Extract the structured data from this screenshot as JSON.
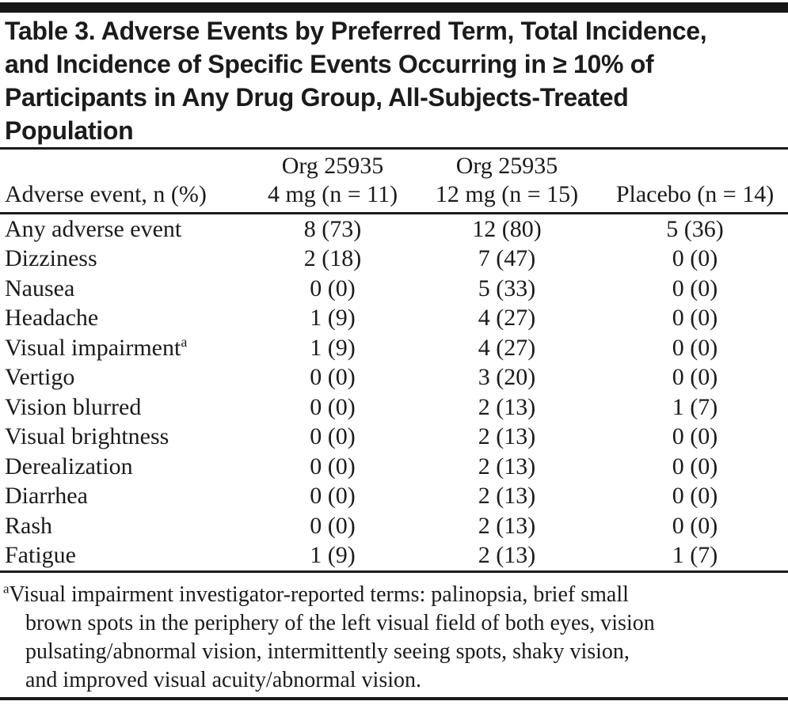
{
  "title": {
    "lines": [
      "Table 3. Adverse Events by Preferred Term, Total Incidence,",
      "and Incidence of Specific Events Occurring in ≥ 10% of",
      "Participants in Any Drug Group, All-Subjects-Treated",
      "Population"
    ]
  },
  "table": {
    "col1_header": "Adverse event, n (%)",
    "col_groups": [
      {
        "line1": "Org 25935",
        "line2": "4 mg (n = 11)"
      },
      {
        "line1": "Org 25935",
        "line2": "12 mg (n = 15)"
      },
      {
        "line1": "",
        "line2": "Placebo (n = 14)"
      }
    ],
    "rows": [
      {
        "label": "Any adverse event",
        "sup": "",
        "c1": "8 (73)",
        "c2": "12 (80)",
        "c3": "5 (36)"
      },
      {
        "label": "Dizziness",
        "sup": "",
        "c1": "2 (18)",
        "c2": "7 (47)",
        "c3": "0 (0)"
      },
      {
        "label": "Nausea",
        "sup": "",
        "c1": "0 (0)",
        "c2": "5 (33)",
        "c3": "0 (0)"
      },
      {
        "label": "Headache",
        "sup": "",
        "c1": "1 (9)",
        "c2": "4 (27)",
        "c3": "0 (0)"
      },
      {
        "label": "Visual impairment",
        "sup": "a",
        "c1": "1 (9)",
        "c2": "4 (27)",
        "c3": "0 (0)"
      },
      {
        "label": "Vertigo",
        "sup": "",
        "c1": "0 (0)",
        "c2": "3 (20)",
        "c3": "0 (0)"
      },
      {
        "label": "Vision blurred",
        "sup": "",
        "c1": "0 (0)",
        "c2": "2 (13)",
        "c3": "1 (7)"
      },
      {
        "label": "Visual brightness",
        "sup": "",
        "c1": "0 (0)",
        "c2": "2 (13)",
        "c3": "0 (0)"
      },
      {
        "label": "Derealization",
        "sup": "",
        "c1": "0 (0)",
        "c2": "2 (13)",
        "c3": "0 (0)"
      },
      {
        "label": "Diarrhea",
        "sup": "",
        "c1": "0 (0)",
        "c2": "2 (13)",
        "c3": "0 (0)"
      },
      {
        "label": "Rash",
        "sup": "",
        "c1": "0 (0)",
        "c2": "2 (13)",
        "c3": "0 (0)"
      },
      {
        "label": "Fatigue",
        "sup": "",
        "c1": "1 (9)",
        "c2": "2 (13)",
        "c3": "1 (7)"
      }
    ]
  },
  "footnote": {
    "marker": "a",
    "lines": [
      "Visual impairment investigator-reported terms: palinopsia, brief small",
      "brown spots in the periphery of the left visual field of both eyes, vision",
      "pulsating/abnormal vision, intermittently seeing spots, shaky vision,",
      "and improved visual acuity/abnormal vision."
    ]
  },
  "colors": {
    "text": "#1b1b1b",
    "rule": "#1b1b1b",
    "top_bar": "#161616",
    "background": "#ffffff"
  },
  "chart_data": {
    "type": "table",
    "title": "Table 3. Adverse Events by Preferred Term, Total Incidence, and Incidence of Specific Events Occurring in ≥ 10% of Participants in Any Drug Group, All-Subjects-Treated Population",
    "columns": [
      "Adverse event, n (%)",
      "Org 25935 4 mg (n = 11)",
      "Org 25935 12 mg (n = 15)",
      "Placebo (n = 14)"
    ],
    "rows": [
      [
        "Any adverse event",
        "8 (73)",
        "12 (80)",
        "5 (36)"
      ],
      [
        "Dizziness",
        "2 (18)",
        "7 (47)",
        "0 (0)"
      ],
      [
        "Nausea",
        "0 (0)",
        "5 (33)",
        "0 (0)"
      ],
      [
        "Headache",
        "1 (9)",
        "4 (27)",
        "0 (0)"
      ],
      [
        "Visual impairment (a)",
        "1 (9)",
        "4 (27)",
        "0 (0)"
      ],
      [
        "Vertigo",
        "0 (0)",
        "3 (20)",
        "0 (0)"
      ],
      [
        "Vision blurred",
        "0 (0)",
        "2 (13)",
        "1 (7)"
      ],
      [
        "Visual brightness",
        "0 (0)",
        "2 (13)",
        "0 (0)"
      ],
      [
        "Derealization",
        "0 (0)",
        "2 (13)",
        "0 (0)"
      ],
      [
        "Diarrhea",
        "0 (0)",
        "2 (13)",
        "0 (0)"
      ],
      [
        "Rash",
        "0 (0)",
        "2 (13)",
        "0 (0)"
      ],
      [
        "Fatigue",
        "1 (9)",
        "2 (13)",
        "1 (7)"
      ]
    ],
    "footnote": "a: Visual impairment investigator-reported terms: palinopsia, brief small brown spots in the periphery of the left visual field of both eyes, vision pulsating/abnormal vision, intermittently seeing spots, shaky vision, and improved visual acuity/abnormal vision."
  }
}
